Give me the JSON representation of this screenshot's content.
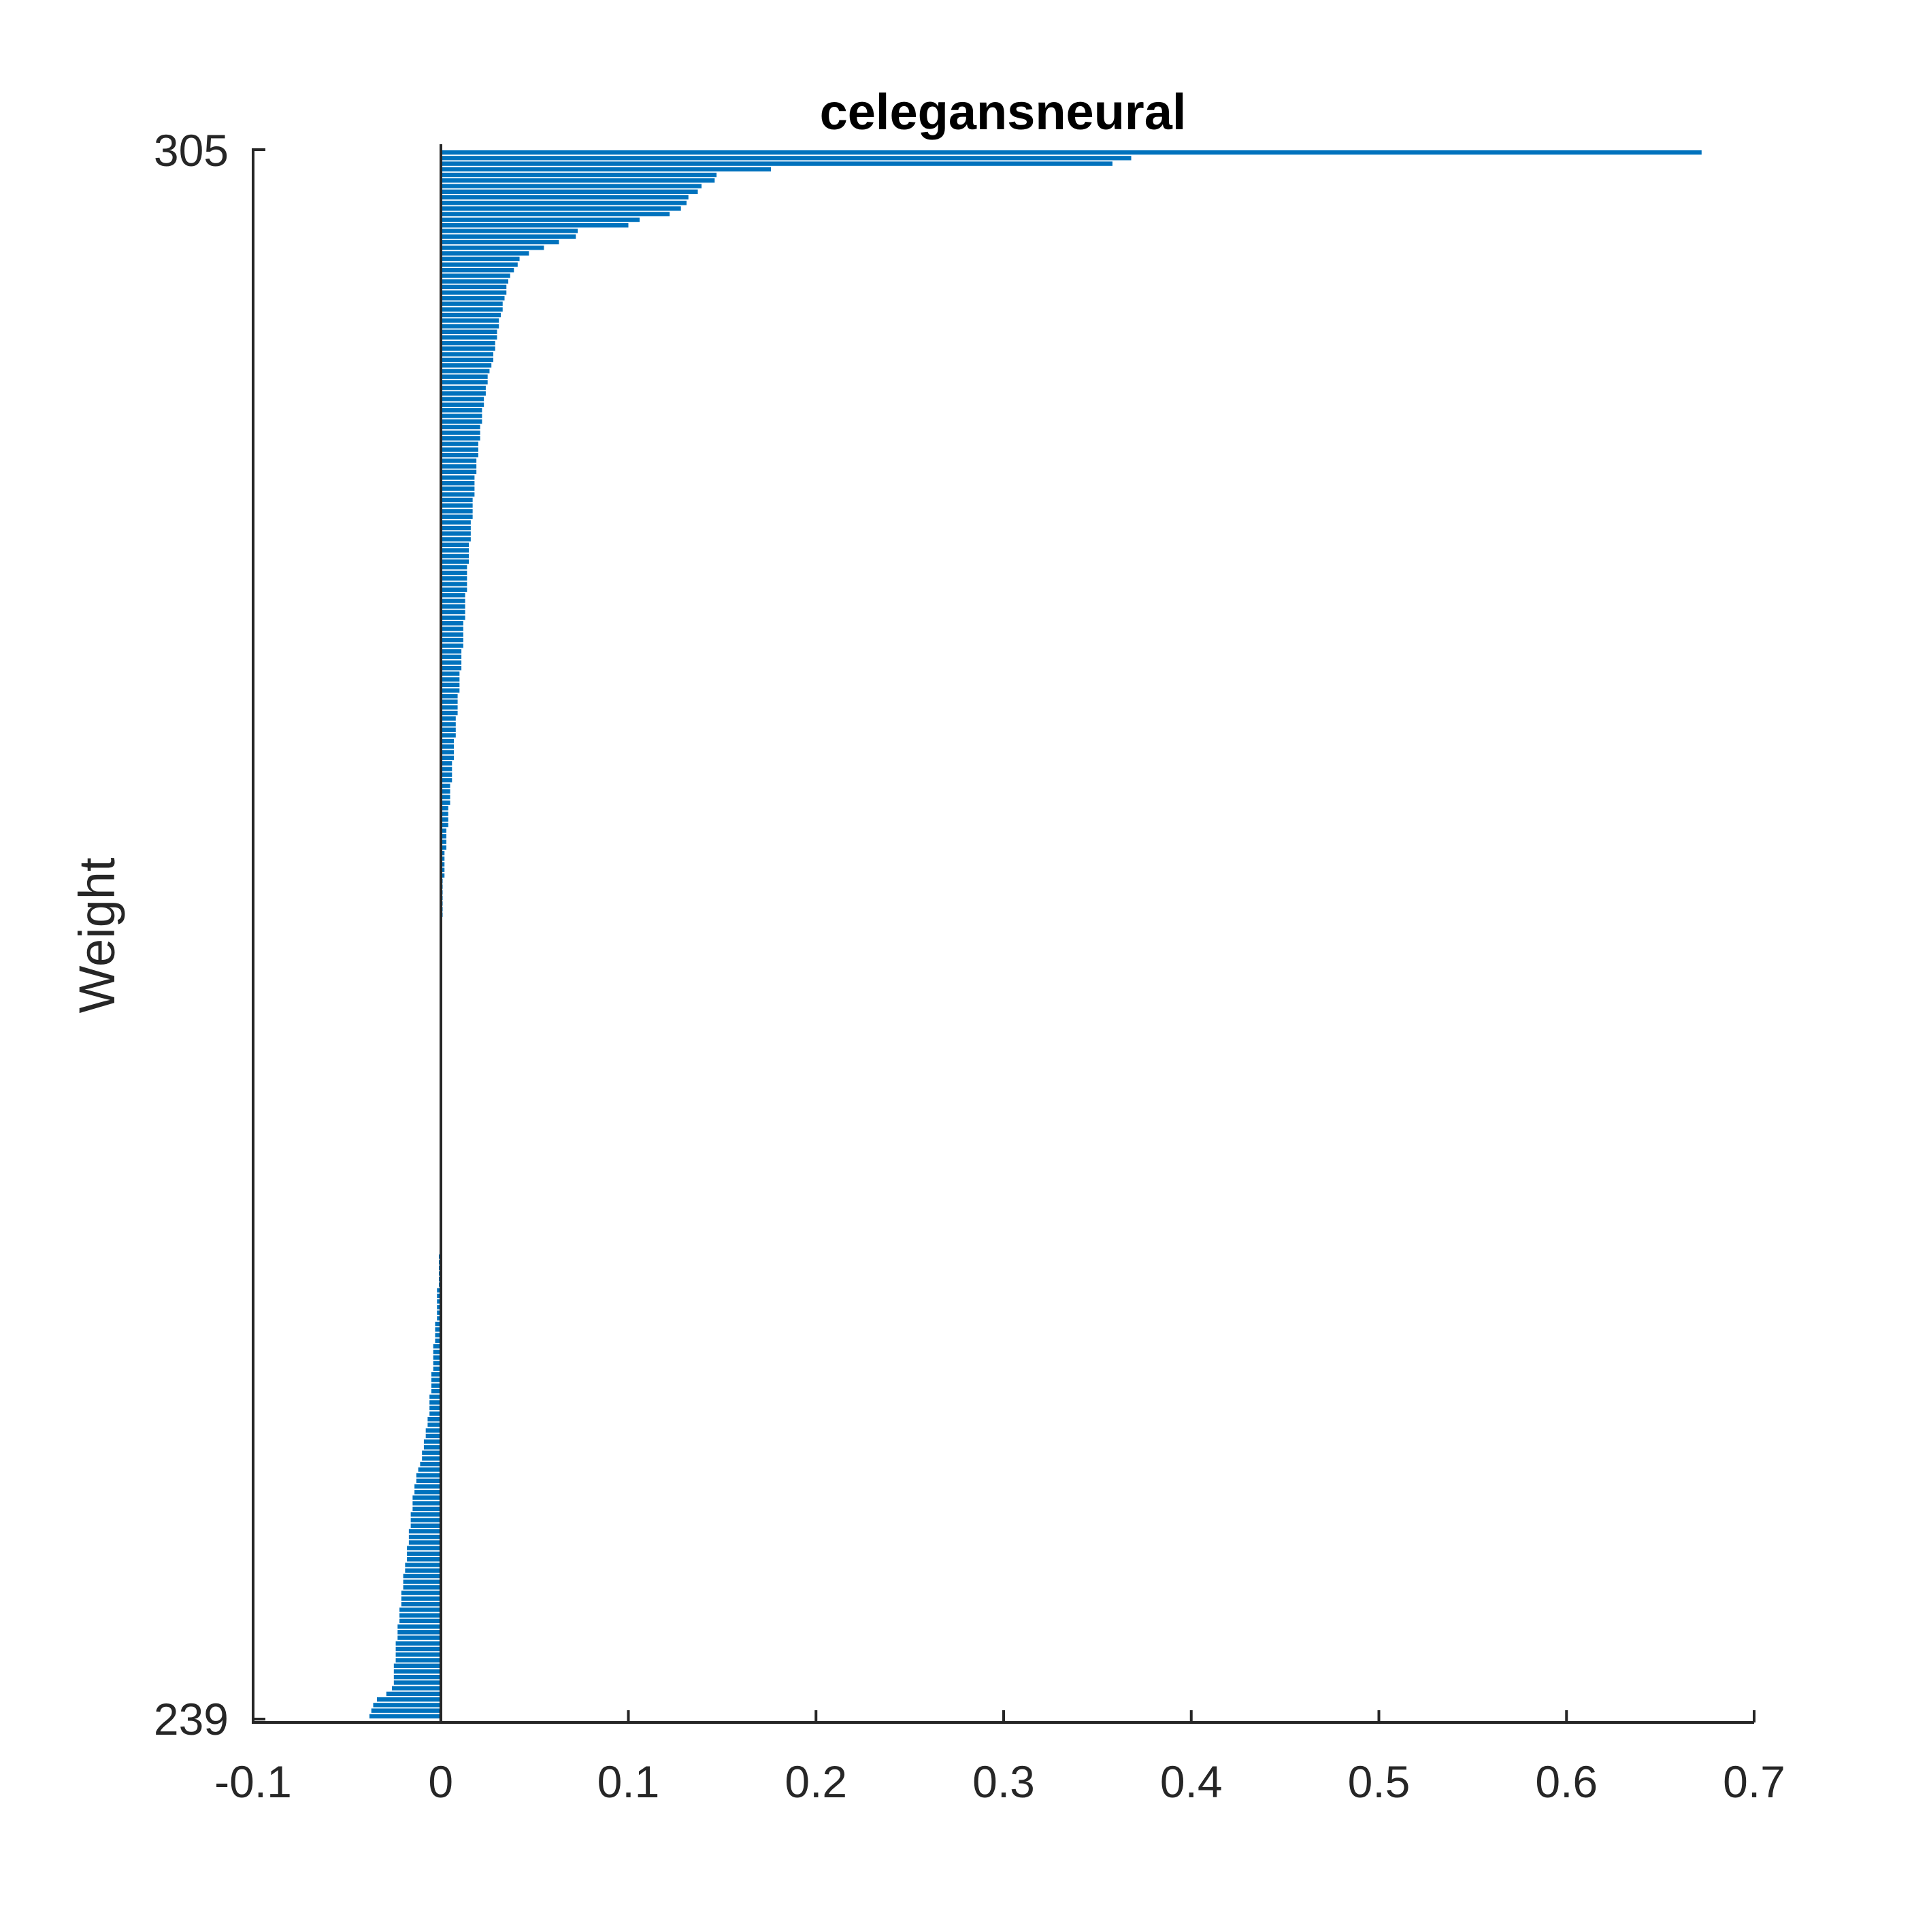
{
  "chart_data": {
    "type": "bar",
    "orientation": "horizontal",
    "title": "celegansneural",
    "xlabel": "",
    "ylabel": "Weight",
    "xlim": [
      -0.1,
      0.7
    ],
    "xticks": [
      "-0.1",
      "0",
      "0.1",
      "0.2",
      "0.3",
      "0.4",
      "0.5",
      "0.6",
      "0.7"
    ],
    "ylim_labels": {
      "top": "305",
      "bottom": "239"
    },
    "grid": false,
    "legend": "none",
    "bar_color": "#0072BD",
    "zero_line_color": "#262626",
    "series": [
      {
        "values_sorted_desc": [
          0.672,
          0.368,
          0.358,
          0.176,
          0.147,
          0.146,
          0.139,
          0.137,
          0.132,
          0.131,
          0.128,
          0.122,
          0.106,
          0.1,
          0.073,
          0.072,
          0.063,
          0.055,
          0.047,
          0.042,
          0.041,
          0.039,
          0.037,
          0.036,
          0.035,
          0.035,
          0.034,
          0.033,
          0.033,
          0.032,
          0.031,
          0.031,
          0.03,
          0.03,
          0.029,
          0.029,
          0.028,
          0.028,
          0.027,
          0.026,
          0.025,
          0.025,
          0.024,
          0.024,
          0.023,
          0.023,
          0.022,
          0.022,
          0.022,
          0.021,
          0.021,
          0.021,
          0.02,
          0.02,
          0.02,
          0.019,
          0.019,
          0.019,
          0.018,
          0.018,
          0.018,
          0.018,
          0.017,
          0.017,
          0.017,
          0.017,
          0.016,
          0.016,
          0.016,
          0.016,
          0.015,
          0.015,
          0.015,
          0.015,
          0.014,
          0.014,
          0.014,
          0.014,
          0.014,
          0.013,
          0.013,
          0.013,
          0.013,
          0.013,
          0.012,
          0.012,
          0.012,
          0.012,
          0.012,
          0.011,
          0.011,
          0.011,
          0.011,
          0.01,
          0.01,
          0.01,
          0.01,
          0.009,
          0.009,
          0.009,
          0.009,
          0.008,
          0.008,
          0.008,
          0.008,
          0.007,
          0.007,
          0.007,
          0.007,
          0.006,
          0.006,
          0.006,
          0.006,
          0.005,
          0.005,
          0.005,
          0.005,
          0.004,
          0.004,
          0.004,
          0.004,
          0.003,
          0.003,
          0.003,
          0.003,
          0.002,
          0.002,
          0.002,
          0.002,
          0.002,
          0.001,
          0.001,
          0.001,
          0.001,
          0.001,
          0.001,
          0.001,
          0.0,
          0.0,
          0.0,
          0.0,
          0.0,
          0.0,
          0.0,
          0.0,
          0.0,
          0.0,
          0.0,
          0.0,
          0.0,
          0.0,
          0.0,
          0.0,
          0.0,
          0.0,
          0.0,
          0.0,
          0.0,
          0.0,
          0.0,
          0.0,
          0.0,
          0.0,
          0.0,
          0.0,
          0.0,
          0.0,
          0.0,
          0.0,
          0.0,
          0.0,
          0.0,
          0.0,
          0.0,
          0.0,
          0.0,
          0.0,
          0.0,
          0.0,
          0.0,
          0.0,
          0.0,
          0.0,
          0.0,
          0.0,
          0.0,
          0.0,
          0.0,
          0.0,
          0.0,
          0.0,
          0.0,
          0.0,
          0.0,
          0.0,
          0.0,
          0.0,
          -0.001,
          -0.001,
          -0.001,
          -0.001,
          -0.001,
          -0.001,
          -0.002,
          -0.002,
          -0.002,
          -0.002,
          -0.002,
          -0.002,
          -0.003,
          -0.003,
          -0.003,
          -0.003,
          -0.004,
          -0.004,
          -0.004,
          -0.004,
          -0.004,
          -0.005,
          -0.005,
          -0.005,
          -0.005,
          -0.006,
          -0.006,
          -0.006,
          -0.006,
          -0.007,
          -0.007,
          -0.008,
          -0.008,
          -0.009,
          -0.009,
          -0.01,
          -0.01,
          -0.011,
          -0.012,
          -0.013,
          -0.013,
          -0.014,
          -0.014,
          -0.015,
          -0.015,
          -0.015,
          -0.016,
          -0.016,
          -0.016,
          -0.017,
          -0.017,
          -0.017,
          -0.018,
          -0.018,
          -0.018,
          -0.019,
          -0.019,
          -0.02,
          -0.02,
          -0.02,
          -0.021,
          -0.021,
          -0.021,
          -0.022,
          -0.022,
          -0.022,
          -0.023,
          -0.023,
          -0.023,
          -0.024,
          -0.024,
          -0.024,
          -0.024,
          -0.025,
          -0.025,
          -0.025,
          -0.025,
          -0.026,
          -0.029,
          -0.034,
          -0.036,
          -0.037,
          -0.038
        ]
      }
    ]
  }
}
